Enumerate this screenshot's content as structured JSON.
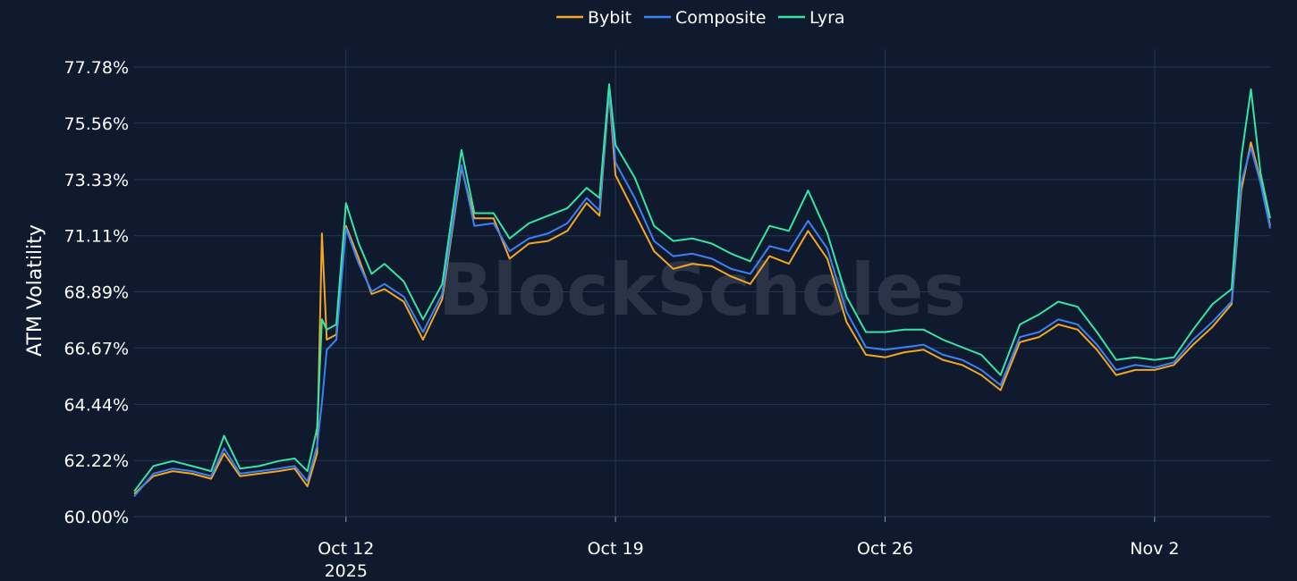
{
  "chart_data": {
    "type": "line",
    "ylabel": "ATM Volatility",
    "watermark": "BlockScholes",
    "yticks": [
      "60.00%",
      "62.22%",
      "64.44%",
      "66.67%",
      "68.89%",
      "71.11%",
      "73.33%",
      "75.56%",
      "77.78%"
    ],
    "ylim": [
      60.0,
      77.78
    ],
    "xticks": [
      {
        "date": "2025-10-12",
        "label": "Oct 12",
        "sublabel": "2025"
      },
      {
        "date": "2025-10-19",
        "label": "Oct 19",
        "sublabel": ""
      },
      {
        "date": "2025-10-26",
        "label": "Oct 26",
        "sublabel": ""
      },
      {
        "date": "2025-11-02",
        "label": "Nov 2",
        "sublabel": ""
      }
    ],
    "xlim": [
      "2025-10-06T12:00",
      "2025-11-05T00:00"
    ],
    "grid": true,
    "legend_position": "top-center",
    "series": [
      {
        "name": "Bybit",
        "color": "#f5a623",
        "points": [
          [
            "2025-10-06T12:00",
            60.9
          ],
          [
            "2025-10-07T00:00",
            61.6
          ],
          [
            "2025-10-07T12:00",
            61.8
          ],
          [
            "2025-10-08T00:00",
            61.7
          ],
          [
            "2025-10-08T12:00",
            61.5
          ],
          [
            "2025-10-08T20:00",
            62.5
          ],
          [
            "2025-10-09T06:00",
            61.6
          ],
          [
            "2025-10-09T18:00",
            61.7
          ],
          [
            "2025-10-10T06:00",
            61.8
          ],
          [
            "2025-10-10T16:00",
            61.9
          ],
          [
            "2025-10-11T00:00",
            61.2
          ],
          [
            "2025-10-11T06:00",
            62.5
          ],
          [
            "2025-10-11T09:00",
            71.2
          ],
          [
            "2025-10-11T12:00",
            67.0
          ],
          [
            "2025-10-11T18:00",
            67.2
          ],
          [
            "2025-10-12T00:00",
            71.5
          ],
          [
            "2025-10-12T08:00",
            70.2
          ],
          [
            "2025-10-12T16:00",
            68.8
          ],
          [
            "2025-10-13T00:00",
            69.0
          ],
          [
            "2025-10-13T12:00",
            68.5
          ],
          [
            "2025-10-14T00:00",
            67.0
          ],
          [
            "2025-10-14T12:00",
            68.6
          ],
          [
            "2025-10-15T00:00",
            73.8
          ],
          [
            "2025-10-15T08:00",
            71.8
          ],
          [
            "2025-10-15T20:00",
            71.8
          ],
          [
            "2025-10-16T06:00",
            70.2
          ],
          [
            "2025-10-16T18:00",
            70.8
          ],
          [
            "2025-10-17T06:00",
            70.9
          ],
          [
            "2025-10-17T18:00",
            71.3
          ],
          [
            "2025-10-18T06:00",
            72.4
          ],
          [
            "2025-10-18T14:00",
            71.9
          ],
          [
            "2025-10-18T20:00",
            76.8
          ],
          [
            "2025-10-19T00:00",
            73.5
          ],
          [
            "2025-10-19T12:00",
            72.0
          ],
          [
            "2025-10-20T00:00",
            70.5
          ],
          [
            "2025-10-20T12:00",
            69.8
          ],
          [
            "2025-10-21T00:00",
            70.0
          ],
          [
            "2025-10-21T12:00",
            69.9
          ],
          [
            "2025-10-22T00:00",
            69.5
          ],
          [
            "2025-10-22T12:00",
            69.2
          ],
          [
            "2025-10-23T00:00",
            70.3
          ],
          [
            "2025-10-23T12:00",
            70.0
          ],
          [
            "2025-10-24T00:00",
            71.3
          ],
          [
            "2025-10-24T12:00",
            70.2
          ],
          [
            "2025-10-25T00:00",
            67.7
          ],
          [
            "2025-10-25T12:00",
            66.4
          ],
          [
            "2025-10-26T00:00",
            66.3
          ],
          [
            "2025-10-26T12:00",
            66.5
          ],
          [
            "2025-10-27T00:00",
            66.6
          ],
          [
            "2025-10-27T12:00",
            66.2
          ],
          [
            "2025-10-28T00:00",
            66.0
          ],
          [
            "2025-10-28T12:00",
            65.6
          ],
          [
            "2025-10-29T00:00",
            65.0
          ],
          [
            "2025-10-29T12:00",
            66.9
          ],
          [
            "2025-10-30T00:00",
            67.1
          ],
          [
            "2025-10-30T12:00",
            67.6
          ],
          [
            "2025-10-31T00:00",
            67.4
          ],
          [
            "2025-10-31T12:00",
            66.6
          ],
          [
            "2025-11-01T00:00",
            65.6
          ],
          [
            "2025-11-01T12:00",
            65.8
          ],
          [
            "2025-11-02T00:00",
            65.8
          ],
          [
            "2025-11-02T12:00",
            66.0
          ],
          [
            "2025-11-03T00:00",
            66.8
          ],
          [
            "2025-11-03T12:00",
            67.5
          ],
          [
            "2025-11-04T00:00",
            68.4
          ],
          [
            "2025-11-04T06:00",
            72.9
          ],
          [
            "2025-11-04T12:00",
            74.8
          ],
          [
            "2025-11-04T18:00",
            73.3
          ],
          [
            "2025-11-05T00:00",
            71.5
          ]
        ]
      },
      {
        "name": "Composite",
        "color": "#3b82f6",
        "points": [
          [
            "2025-10-06T12:00",
            60.8
          ],
          [
            "2025-10-07T00:00",
            61.7
          ],
          [
            "2025-10-07T12:00",
            61.9
          ],
          [
            "2025-10-08T00:00",
            61.8
          ],
          [
            "2025-10-08T12:00",
            61.6
          ],
          [
            "2025-10-08T20:00",
            62.7
          ],
          [
            "2025-10-09T06:00",
            61.7
          ],
          [
            "2025-10-09T18:00",
            61.8
          ],
          [
            "2025-10-10T06:00",
            61.9
          ],
          [
            "2025-10-10T16:00",
            62.0
          ],
          [
            "2025-10-11T00:00",
            61.4
          ],
          [
            "2025-10-11T06:00",
            62.8
          ],
          [
            "2025-10-11T09:00",
            64.5
          ],
          [
            "2025-10-11T12:00",
            66.6
          ],
          [
            "2025-10-11T18:00",
            67.0
          ],
          [
            "2025-10-12T00:00",
            71.4
          ],
          [
            "2025-10-12T08:00",
            70.0
          ],
          [
            "2025-10-12T16:00",
            68.9
          ],
          [
            "2025-10-13T00:00",
            69.2
          ],
          [
            "2025-10-13T12:00",
            68.7
          ],
          [
            "2025-10-14T00:00",
            67.3
          ],
          [
            "2025-10-14T12:00",
            68.8
          ],
          [
            "2025-10-15T00:00",
            73.9
          ],
          [
            "2025-10-15T08:00",
            71.5
          ],
          [
            "2025-10-15T20:00",
            71.6
          ],
          [
            "2025-10-16T06:00",
            70.5
          ],
          [
            "2025-10-16T18:00",
            71.0
          ],
          [
            "2025-10-17T06:00",
            71.2
          ],
          [
            "2025-10-17T18:00",
            71.6
          ],
          [
            "2025-10-18T06:00",
            72.6
          ],
          [
            "2025-10-18T14:00",
            72.1
          ],
          [
            "2025-10-18T20:00",
            76.9
          ],
          [
            "2025-10-19T00:00",
            74.0
          ],
          [
            "2025-10-19T12:00",
            72.6
          ],
          [
            "2025-10-20T00:00",
            70.9
          ],
          [
            "2025-10-20T12:00",
            70.3
          ],
          [
            "2025-10-21T00:00",
            70.4
          ],
          [
            "2025-10-21T12:00",
            70.2
          ],
          [
            "2025-10-22T00:00",
            69.8
          ],
          [
            "2025-10-22T12:00",
            69.6
          ],
          [
            "2025-10-23T00:00",
            70.7
          ],
          [
            "2025-10-23T12:00",
            70.5
          ],
          [
            "2025-10-24T00:00",
            71.7
          ],
          [
            "2025-10-24T12:00",
            70.6
          ],
          [
            "2025-10-25T00:00",
            68.1
          ],
          [
            "2025-10-25T12:00",
            66.7
          ],
          [
            "2025-10-26T00:00",
            66.6
          ],
          [
            "2025-10-26T12:00",
            66.7
          ],
          [
            "2025-10-27T00:00",
            66.8
          ],
          [
            "2025-10-27T12:00",
            66.4
          ],
          [
            "2025-10-28T00:00",
            66.2
          ],
          [
            "2025-10-28T12:00",
            65.8
          ],
          [
            "2025-10-29T00:00",
            65.2
          ],
          [
            "2025-10-29T12:00",
            67.1
          ],
          [
            "2025-10-30T00:00",
            67.3
          ],
          [
            "2025-10-30T12:00",
            67.8
          ],
          [
            "2025-10-31T00:00",
            67.6
          ],
          [
            "2025-10-31T12:00",
            66.8
          ],
          [
            "2025-11-01T00:00",
            65.8
          ],
          [
            "2025-11-01T12:00",
            66.0
          ],
          [
            "2025-11-02T00:00",
            65.9
          ],
          [
            "2025-11-02T12:00",
            66.1
          ],
          [
            "2025-11-03T00:00",
            67.0
          ],
          [
            "2025-11-03T12:00",
            67.7
          ],
          [
            "2025-11-04T00:00",
            68.5
          ],
          [
            "2025-11-04T06:00",
            73.2
          ],
          [
            "2025-11-04T12:00",
            74.6
          ],
          [
            "2025-11-04T18:00",
            73.2
          ],
          [
            "2025-11-05T00:00",
            71.4
          ]
        ]
      },
      {
        "name": "Lyra",
        "color": "#34e5a5",
        "points": [
          [
            "2025-10-06T12:00",
            61.0
          ],
          [
            "2025-10-07T00:00",
            62.0
          ],
          [
            "2025-10-07T12:00",
            62.2
          ],
          [
            "2025-10-08T00:00",
            62.0
          ],
          [
            "2025-10-08T12:00",
            61.8
          ],
          [
            "2025-10-08T20:00",
            63.2
          ],
          [
            "2025-10-09T06:00",
            61.9
          ],
          [
            "2025-10-09T18:00",
            62.0
          ],
          [
            "2025-10-10T06:00",
            62.2
          ],
          [
            "2025-10-10T16:00",
            62.3
          ],
          [
            "2025-10-11T00:00",
            61.8
          ],
          [
            "2025-10-11T06:00",
            63.5
          ],
          [
            "2025-10-11T09:00",
            67.8
          ],
          [
            "2025-10-11T12:00",
            67.4
          ],
          [
            "2025-10-11T18:00",
            67.6
          ],
          [
            "2025-10-12T00:00",
            72.4
          ],
          [
            "2025-10-12T08:00",
            70.8
          ],
          [
            "2025-10-12T16:00",
            69.6
          ],
          [
            "2025-10-13T00:00",
            70.0
          ],
          [
            "2025-10-13T12:00",
            69.3
          ],
          [
            "2025-10-14T00:00",
            67.8
          ],
          [
            "2025-10-14T12:00",
            69.2
          ],
          [
            "2025-10-15T00:00",
            74.5
          ],
          [
            "2025-10-15T08:00",
            72.0
          ],
          [
            "2025-10-15T20:00",
            72.0
          ],
          [
            "2025-10-16T06:00",
            71.0
          ],
          [
            "2025-10-16T18:00",
            71.6
          ],
          [
            "2025-10-17T06:00",
            71.9
          ],
          [
            "2025-10-17T18:00",
            72.2
          ],
          [
            "2025-10-18T06:00",
            73.0
          ],
          [
            "2025-10-18T14:00",
            72.6
          ],
          [
            "2025-10-18T20:00",
            77.1
          ],
          [
            "2025-10-19T00:00",
            74.7
          ],
          [
            "2025-10-19T12:00",
            73.4
          ],
          [
            "2025-10-20T00:00",
            71.5
          ],
          [
            "2025-10-20T12:00",
            70.9
          ],
          [
            "2025-10-21T00:00",
            71.0
          ],
          [
            "2025-10-21T12:00",
            70.8
          ],
          [
            "2025-10-22T00:00",
            70.4
          ],
          [
            "2025-10-22T12:00",
            70.1
          ],
          [
            "2025-10-23T00:00",
            71.5
          ],
          [
            "2025-10-23T12:00",
            71.3
          ],
          [
            "2025-10-24T00:00",
            72.9
          ],
          [
            "2025-10-24T12:00",
            71.2
          ],
          [
            "2025-10-25T00:00",
            68.7
          ],
          [
            "2025-10-25T12:00",
            67.3
          ],
          [
            "2025-10-26T00:00",
            67.3
          ],
          [
            "2025-10-26T12:00",
            67.4
          ],
          [
            "2025-10-27T00:00",
            67.4
          ],
          [
            "2025-10-27T12:00",
            67.0
          ],
          [
            "2025-10-28T00:00",
            66.7
          ],
          [
            "2025-10-28T12:00",
            66.4
          ],
          [
            "2025-10-29T00:00",
            65.6
          ],
          [
            "2025-10-29T12:00",
            67.6
          ],
          [
            "2025-10-30T00:00",
            68.0
          ],
          [
            "2025-10-30T12:00",
            68.5
          ],
          [
            "2025-10-31T00:00",
            68.3
          ],
          [
            "2025-10-31T12:00",
            67.3
          ],
          [
            "2025-11-01T00:00",
            66.2
          ],
          [
            "2025-11-01T12:00",
            66.3
          ],
          [
            "2025-11-02T00:00",
            66.2
          ],
          [
            "2025-11-02T12:00",
            66.3
          ],
          [
            "2025-11-03T00:00",
            67.4
          ],
          [
            "2025-11-03T12:00",
            68.4
          ],
          [
            "2025-11-04T00:00",
            69.0
          ],
          [
            "2025-11-04T06:00",
            74.2
          ],
          [
            "2025-11-04T12:00",
            76.9
          ],
          [
            "2025-11-04T18:00",
            73.6
          ],
          [
            "2025-11-05T00:00",
            71.8
          ]
        ]
      }
    ]
  }
}
